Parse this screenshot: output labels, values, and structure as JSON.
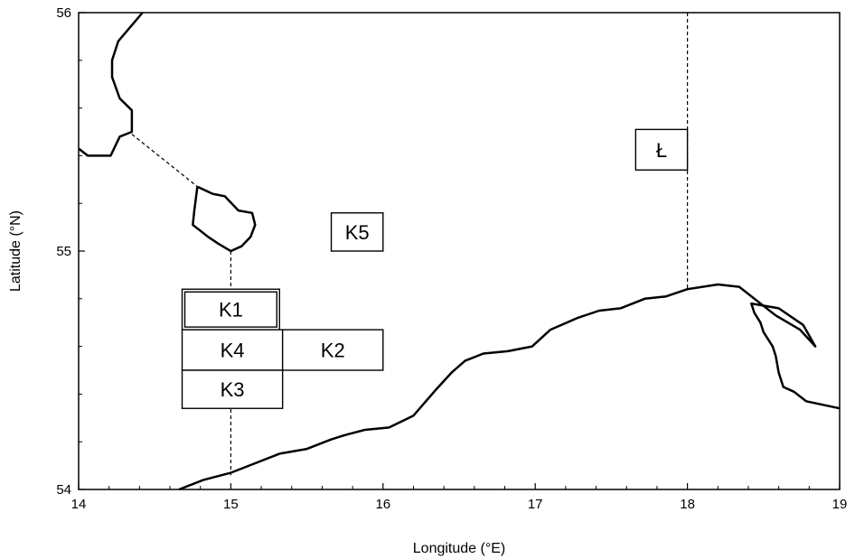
{
  "chart_data": {
    "type": "map",
    "xlabel": "Longitude (°E)",
    "ylabel": "Latitude (°N)",
    "xlim": [
      14,
      19
    ],
    "ylim": [
      54,
      56
    ],
    "xticks": [
      "14",
      "15",
      "16",
      "17",
      "18",
      "19"
    ],
    "yticks": [
      "54",
      "55",
      "56"
    ],
    "coastlines": [
      {
        "id": "coast-north",
        "points": [
          [
            14.42,
            56.0
          ],
          [
            14.26,
            55.88
          ],
          [
            14.22,
            55.8
          ],
          [
            14.22,
            55.73
          ],
          [
            14.27,
            55.64
          ],
          [
            14.35,
            55.59
          ],
          [
            14.35,
            55.5
          ],
          [
            14.27,
            55.48
          ],
          [
            14.21,
            55.4
          ],
          [
            14.06,
            55.4
          ],
          [
            14.0,
            55.43
          ]
        ]
      },
      {
        "id": "coast-bornholm",
        "points": [
          [
            14.78,
            55.27
          ],
          [
            14.88,
            55.24
          ],
          [
            14.96,
            55.23
          ],
          [
            15.05,
            55.17
          ],
          [
            15.14,
            55.16
          ],
          [
            15.16,
            55.11
          ],
          [
            15.13,
            55.06
          ],
          [
            15.07,
            55.02
          ],
          [
            15.0,
            55.0
          ],
          [
            14.92,
            55.03
          ],
          [
            14.85,
            55.06
          ],
          [
            14.79,
            55.09
          ],
          [
            14.75,
            55.11
          ],
          [
            14.76,
            55.17
          ],
          [
            14.78,
            55.27
          ]
        ]
      },
      {
        "id": "coast-south",
        "points": [
          [
            14.66,
            54.0
          ],
          [
            14.82,
            54.04
          ],
          [
            15.0,
            54.07
          ],
          [
            15.16,
            54.11
          ],
          [
            15.32,
            54.15
          ],
          [
            15.5,
            54.17
          ],
          [
            15.66,
            54.21
          ],
          [
            15.76,
            54.23
          ],
          [
            15.88,
            54.25
          ],
          [
            16.04,
            54.26
          ],
          [
            16.2,
            54.31
          ],
          [
            16.35,
            54.42
          ],
          [
            16.45,
            54.49
          ],
          [
            16.54,
            54.54
          ],
          [
            16.66,
            54.57
          ],
          [
            16.82,
            54.58
          ],
          [
            16.98,
            54.6
          ],
          [
            17.1,
            54.67
          ],
          [
            17.28,
            54.72
          ],
          [
            17.42,
            54.75
          ],
          [
            17.56,
            54.76
          ],
          [
            17.72,
            54.8
          ],
          [
            17.86,
            54.81
          ],
          [
            18.0,
            54.84
          ],
          [
            18.2,
            54.86
          ],
          [
            18.34,
            54.85
          ],
          [
            18.44,
            54.8
          ],
          [
            18.58,
            54.73
          ],
          [
            18.74,
            54.67
          ],
          [
            18.84,
            54.6
          ],
          [
            18.76,
            54.69
          ],
          [
            18.6,
            54.76
          ],
          [
            18.42,
            54.78
          ],
          [
            18.44,
            54.74
          ],
          [
            18.48,
            54.7
          ],
          [
            18.5,
            54.66
          ],
          [
            18.56,
            54.6
          ],
          [
            18.58,
            54.56
          ],
          [
            18.6,
            54.49
          ],
          [
            18.63,
            54.43
          ],
          [
            18.7,
            54.41
          ],
          [
            18.78,
            54.37
          ],
          [
            19.0,
            54.34
          ]
        ]
      }
    ],
    "dashed_lines": [
      {
        "id": "dash-sweden-bornholm",
        "points": [
          [
            14.35,
            55.49
          ],
          [
            14.78,
            55.27
          ]
        ]
      },
      {
        "id": "dash-15e",
        "points": [
          [
            15.0,
            55.0
          ],
          [
            15.0,
            54.06
          ]
        ]
      },
      {
        "id": "dash-18e",
        "points": [
          [
            18.0,
            56.0
          ],
          [
            18.0,
            54.84
          ]
        ]
      }
    ],
    "regions": [
      {
        "name": "K1",
        "lon": [
          14.68,
          15.32
        ],
        "lat": [
          54.67,
          54.84
        ],
        "double": true
      },
      {
        "name": "K4",
        "lon": [
          14.68,
          15.34
        ],
        "lat": [
          54.5,
          54.67
        ]
      },
      {
        "name": "K2",
        "lon": [
          15.34,
          16.0
        ],
        "lat": [
          54.5,
          54.67
        ]
      },
      {
        "name": "K3",
        "lon": [
          14.68,
          15.34
        ],
        "lat": [
          54.34,
          54.5
        ]
      },
      {
        "name": "K5",
        "lon": [
          15.66,
          16.0
        ],
        "lat": [
          55.0,
          55.16
        ]
      },
      {
        "name": "Ł",
        "lon": [
          17.66,
          18.0
        ],
        "lat": [
          55.34,
          55.51
        ]
      }
    ]
  }
}
